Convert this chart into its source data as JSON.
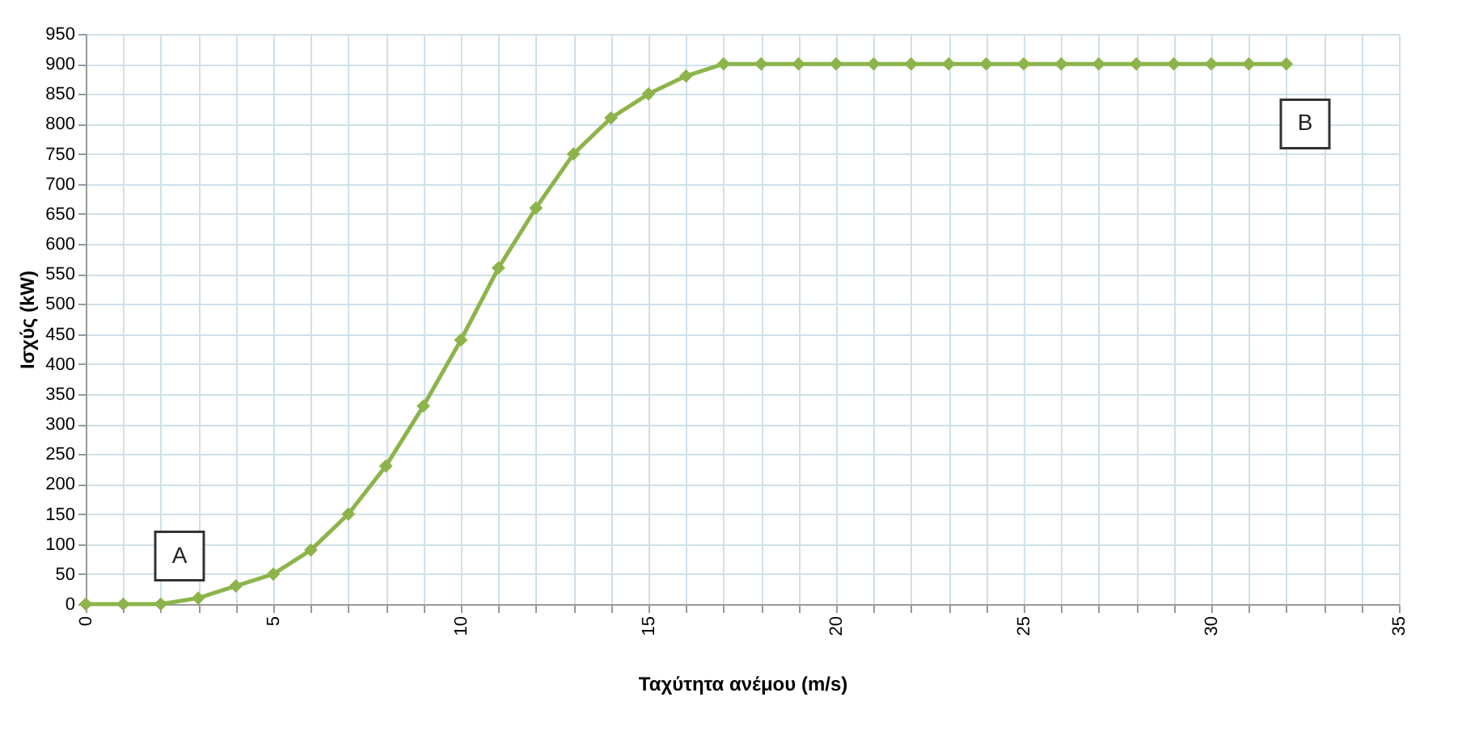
{
  "chart_data": {
    "type": "line",
    "xlabel": "Ταχύτητα ανέμου (m/s)",
    "ylabel": "Ισχύς (kW)",
    "x": [
      0,
      1,
      2,
      3,
      4,
      5,
      6,
      7,
      8,
      9,
      10,
      11,
      12,
      13,
      14,
      15,
      16,
      17,
      18,
      19,
      20,
      21,
      22,
      23,
      24,
      25,
      26,
      27,
      28,
      29,
      30,
      31,
      32
    ],
    "series": [
      {
        "color": "#8cb44a",
        "values": [
          0,
          0,
          0,
          10,
          30,
          50,
          90,
          150,
          230,
          330,
          440,
          560,
          660,
          750,
          810,
          850,
          880,
          900,
          900,
          900,
          900,
          900,
          900,
          900,
          900,
          900,
          900,
          900,
          900,
          900,
          900,
          900,
          900
        ]
      }
    ],
    "xlim": [
      0,
      35
    ],
    "ylim": [
      0,
      950
    ],
    "xticks": [
      0,
      {
        "value": 1,
        "label": null
      },
      {
        "value": 2,
        "label": null
      },
      {
        "value": 3,
        "label": null
      },
      {
        "value": 4,
        "label": null
      },
      5,
      {
        "value": 6,
        "label": null
      },
      {
        "value": 7,
        "label": null
      },
      {
        "value": 8,
        "label": null
      },
      {
        "value": 9,
        "label": null
      },
      10,
      {
        "value": 11,
        "label": null
      },
      {
        "value": 12,
        "label": null
      },
      {
        "value": 13,
        "label": null
      },
      {
        "value": 14,
        "label": null
      },
      15,
      {
        "value": 16,
        "label": null
      },
      {
        "value": 17,
        "label": null
      },
      {
        "value": 18,
        "label": null
      },
      {
        "value": 19,
        "label": null
      },
      20,
      {
        "value": 21,
        "label": null
      },
      {
        "value": 22,
        "label": null
      },
      {
        "value": 23,
        "label": null
      },
      {
        "value": 24,
        "label": null
      },
      25,
      {
        "value": 26,
        "label": null
      },
      {
        "value": 27,
        "label": null
      },
      {
        "value": 28,
        "label": null
      },
      {
        "value": 29,
        "label": null
      },
      30,
      {
        "value": 31,
        "label": null
      },
      {
        "value": 32,
        "label": null
      },
      {
        "value": 33,
        "label": null
      },
      {
        "value": 34,
        "label": null
      },
      35
    ],
    "yticks": [
      0,
      50,
      100,
      150,
      200,
      250,
      300,
      350,
      400,
      450,
      500,
      550,
      600,
      650,
      700,
      750,
      800,
      850,
      900,
      950
    ],
    "grid": true,
    "marker": "diamond",
    "line_style": "solid",
    "annotations": [
      {
        "text": "A",
        "x": 2.5,
        "y": 80
      },
      {
        "text": "B",
        "x": 32.5,
        "y": 800
      }
    ]
  }
}
